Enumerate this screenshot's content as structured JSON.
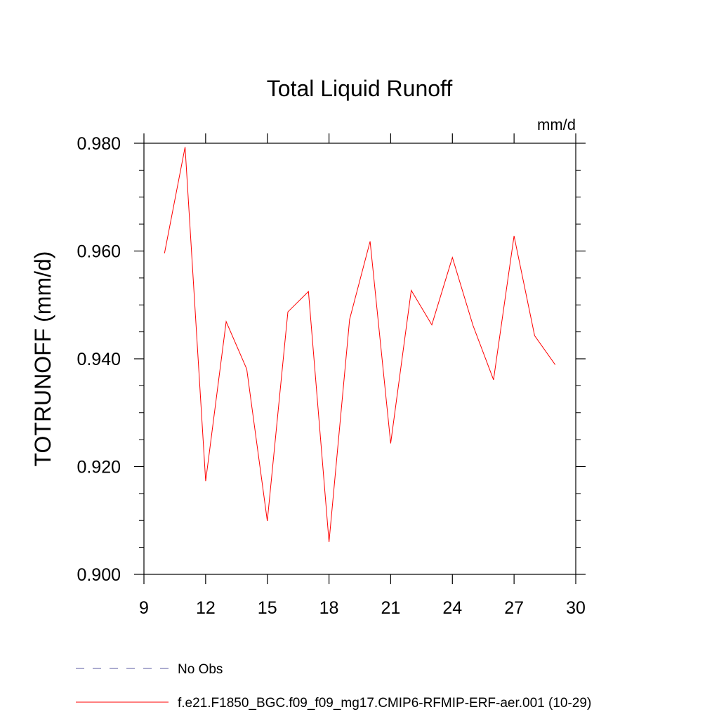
{
  "chart_data": {
    "type": "line",
    "title": "Total Liquid Runoff",
    "units": "mm/d",
    "ylabel": "TOTRUNOFF  (mm/d)",
    "xlabel": "",
    "xlim": [
      9,
      30
    ],
    "ylim": [
      0.9,
      0.98
    ],
    "x_ticks": [
      9,
      12,
      15,
      18,
      21,
      24,
      27,
      30
    ],
    "x_tick_labels": [
      "9",
      "12",
      "15",
      "18",
      "21",
      "24",
      "27",
      "30"
    ],
    "y_ticks": [
      0.9,
      0.92,
      0.94,
      0.96,
      0.98
    ],
    "y_tick_labels": [
      "0.900",
      "0.920",
      "0.940",
      "0.960",
      "0.980"
    ],
    "y_minor_step": 0.005,
    "grid": false,
    "legend_position": "bottom-left",
    "series": [
      {
        "name": "f.e21.F1850_BGC.f09_f09_mg17.CMIP6-RFMIP-ERF-aer.001 (10-29)",
        "color": "#ff0000",
        "x": [
          10,
          11,
          12,
          13,
          14,
          15,
          16,
          17,
          18,
          19,
          20,
          21,
          22,
          23,
          24,
          25,
          26,
          27,
          28,
          29
        ],
        "y": [
          0.9596,
          0.9793,
          0.9173,
          0.9469,
          0.9381,
          0.9099,
          0.9487,
          0.9525,
          0.906,
          0.9473,
          0.9618,
          0.9243,
          0.9527,
          0.9463,
          0.9588,
          0.9462,
          0.9361,
          0.9628,
          0.9443,
          0.9389
        ]
      }
    ],
    "legend": [
      {
        "label": "No Obs",
        "color": "#5a5aa0",
        "dash": "dashed"
      },
      {
        "label": "f.e21.F1850_BGC.f09_f09_mg17.CMIP6-RFMIP-ERF-aer.001 (10-29)",
        "color": "#ff0000",
        "dash": "solid"
      }
    ]
  }
}
